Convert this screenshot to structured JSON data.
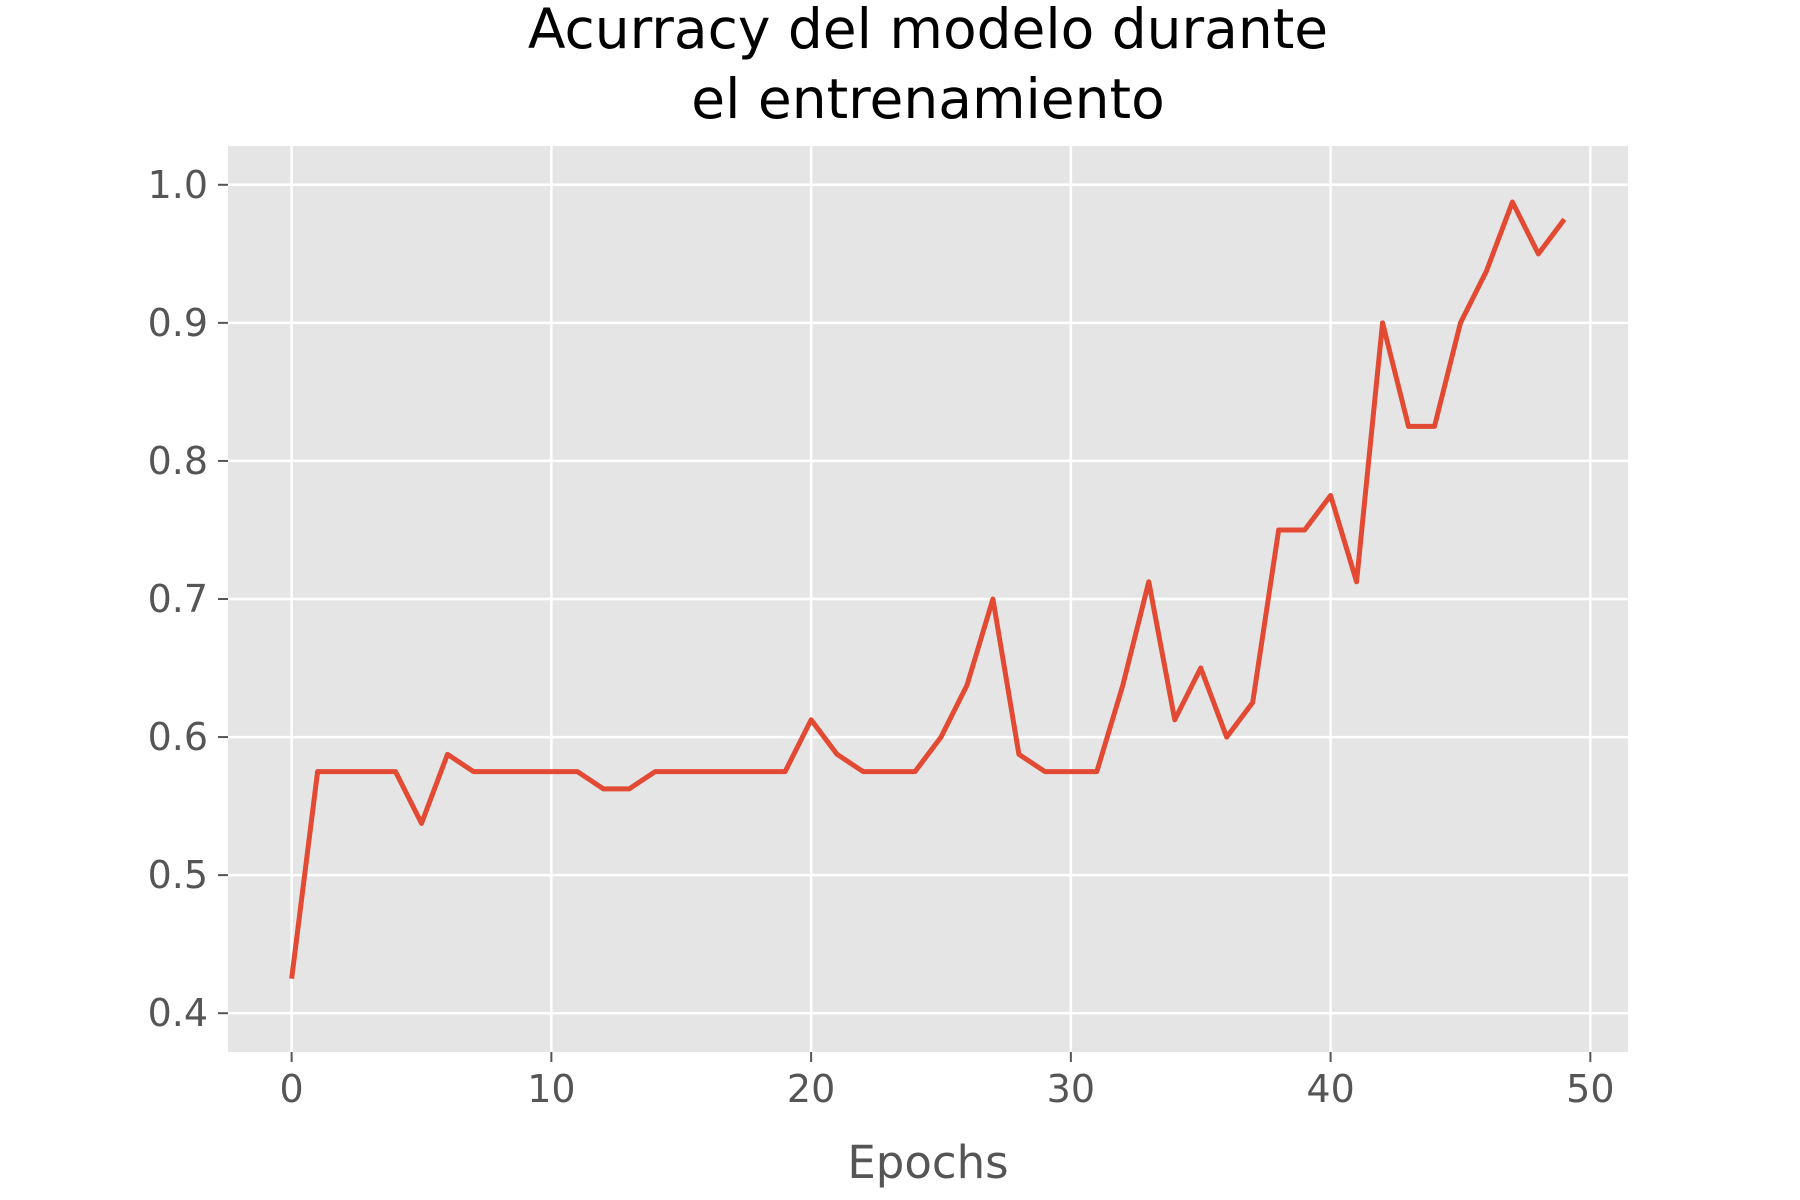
{
  "chart_data": {
    "type": "line",
    "title_lines": [
      "Acurracy del modelo durante",
      "el entrenamiento"
    ],
    "xlabel": "Epochs",
    "ylabel": "",
    "xlim": [
      -2.45,
      51.45
    ],
    "ylim": [
      0.3719,
      1.0281
    ],
    "xticks": [
      0,
      10,
      20,
      30,
      40,
      50
    ],
    "yticks": [
      0.4,
      0.5,
      0.6,
      0.7,
      0.8,
      0.9,
      1.0
    ],
    "xtick_labels": [
      "0",
      "10",
      "20",
      "30",
      "40",
      "50"
    ],
    "ytick_labels": [
      "0.4",
      "0.5",
      "0.6",
      "0.7",
      "0.8",
      "0.9",
      "1.0"
    ],
    "grid": true,
    "colors": {
      "line": "#e24a33",
      "plot_bg": "#e5e5e5",
      "grid": "#ffffff",
      "tick": "#555555"
    },
    "series": [
      {
        "x": [
          0,
          1,
          2,
          3,
          4,
          5,
          6,
          7,
          8,
          9,
          10,
          11,
          12,
          13,
          14,
          15,
          16,
          17,
          18,
          19,
          20,
          21,
          22,
          23,
          24,
          25,
          26,
          27,
          28,
          29,
          30,
          31,
          32,
          33,
          34,
          35,
          36,
          37,
          38,
          39,
          40,
          41,
          42,
          43,
          44,
          45,
          46,
          47,
          48,
          49
        ],
        "values": [
          0.425,
          0.575,
          0.575,
          0.575,
          0.575,
          0.5375,
          0.5875,
          0.575,
          0.575,
          0.575,
          0.575,
          0.575,
          0.5625,
          0.5625,
          0.575,
          0.575,
          0.575,
          0.575,
          0.575,
          0.575,
          0.6125,
          0.5875,
          0.575,
          0.575,
          0.575,
          0.6,
          0.6375,
          0.7,
          0.5875,
          0.575,
          0.575,
          0.575,
          0.6375,
          0.7125,
          0.6125,
          0.65,
          0.6,
          0.625,
          0.75,
          0.75,
          0.775,
          0.7125,
          0.9,
          0.825,
          0.825,
          0.9,
          0.9375,
          0.9875,
          0.95,
          0.975
        ]
      }
    ]
  }
}
